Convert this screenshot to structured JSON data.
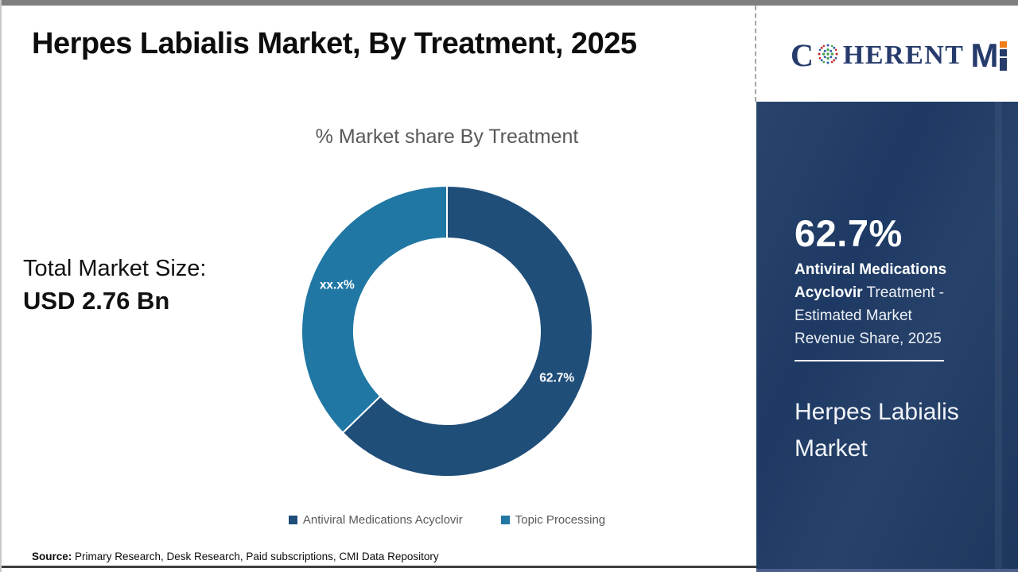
{
  "page": {
    "title": "Herpes Labialis Market, By Treatment, 2025"
  },
  "logo": {
    "name": "CoherentMI",
    "text_c": "C",
    "text_rest": "HERENT",
    "text_m": "M",
    "colors": {
      "navy": "#263b6b",
      "green": "#43a047",
      "blue": "#2e5da8",
      "red": "#c62828",
      "orange": "#ef7d1a"
    }
  },
  "left_stat": {
    "label": "Total Market Size:",
    "value": "USD 2.76 Bn"
  },
  "chart_data": {
    "type": "pie",
    "donut": true,
    "title": "% Market share By Treatment",
    "categories": [
      "Antiviral Medications Acyclovir",
      "Topic Processing"
    ],
    "values": [
      62.7,
      37.3
    ],
    "slice_labels": [
      "62.7%",
      "xx.x%"
    ],
    "colors": [
      "#1f4e79",
      "#2077a4"
    ],
    "start_angle_deg": 0,
    "direction": "clockwise",
    "legend_position": "bottom"
  },
  "side_panel": {
    "bg_color": "#1e3a64",
    "stat_value": "62.7%",
    "desc_bold": "Antiviral Medications Acyclovir",
    "desc_rest": " Treatment - Estimated Market Revenue Share, 2025",
    "panel_title": "Herpes Labialis Market"
  },
  "source": {
    "label": "Source:",
    "text": " Primary Research, Desk Research, Paid subscriptions, CMI Data Repository"
  }
}
